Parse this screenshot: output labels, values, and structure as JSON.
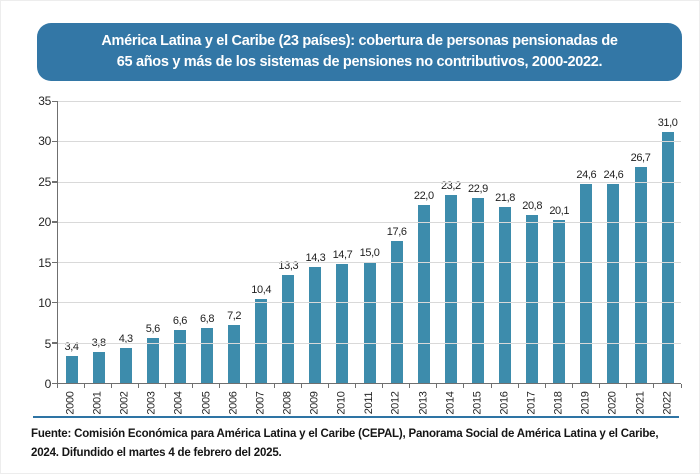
{
  "title": {
    "line1": "América Latina y el Caribe (23 países): cobertura de personas pensionadas de",
    "line2": "65 años y más de los sistemas de pensiones no contributivos, 2000-2022.",
    "bg_color": "#3377A6"
  },
  "source": {
    "line1": "Fuente: Comisión Económica para América Latina y el Caribe (CEPAL), Panorama Social de América Latina y el Caribe,",
    "line2": "2024. Difundido el martes 4 de febrero del 2025."
  },
  "colors": {
    "bar": "#3D8CAC",
    "gridline": "#D9D9D9",
    "axis": "#6F6F6F",
    "separator": "#2E74A4",
    "text": "#262626"
  },
  "chart_data": {
    "type": "bar",
    "title": "América Latina y el Caribe (23 países): cobertura de personas pensionadas de 65 años y más de los sistemas de pensiones no contributivos, 2000-2022.",
    "categories": [
      "2000",
      "2001",
      "2002",
      "2003",
      "2004",
      "2005",
      "2006",
      "2007",
      "2008",
      "2009",
      "2010",
      "2011",
      "2012",
      "2013",
      "2014",
      "2015",
      "2016",
      "2017",
      "2018",
      "2019",
      "2020",
      "2021",
      "2022"
    ],
    "values": [
      3.4,
      3.8,
      4.3,
      5.6,
      6.6,
      6.8,
      7.2,
      10.4,
      13.3,
      14.3,
      14.7,
      15.0,
      17.6,
      22.0,
      23.2,
      22.9,
      21.8,
      20.8,
      20.1,
      24.6,
      24.6,
      26.7,
      31.0
    ],
    "value_labels": [
      "3,4",
      "3,8",
      "4,3",
      "5,6",
      "6,6",
      "6,8",
      "7,2",
      "10,4",
      "13,3",
      "14,3",
      "14,7",
      "15,0",
      "17,6",
      "22,0",
      "23,2",
      "22,9",
      "21,8",
      "20,8",
      "20,1",
      "24,6",
      "24,6",
      "26,7",
      "31,0"
    ],
    "xlabel": "",
    "ylabel": "",
    "ylim": [
      0,
      35
    ],
    "yticks": [
      0,
      5,
      10,
      15,
      20,
      25,
      30,
      35
    ],
    "grid": "horizontal",
    "legend": "none",
    "bar_color": "#3D8CAC"
  }
}
